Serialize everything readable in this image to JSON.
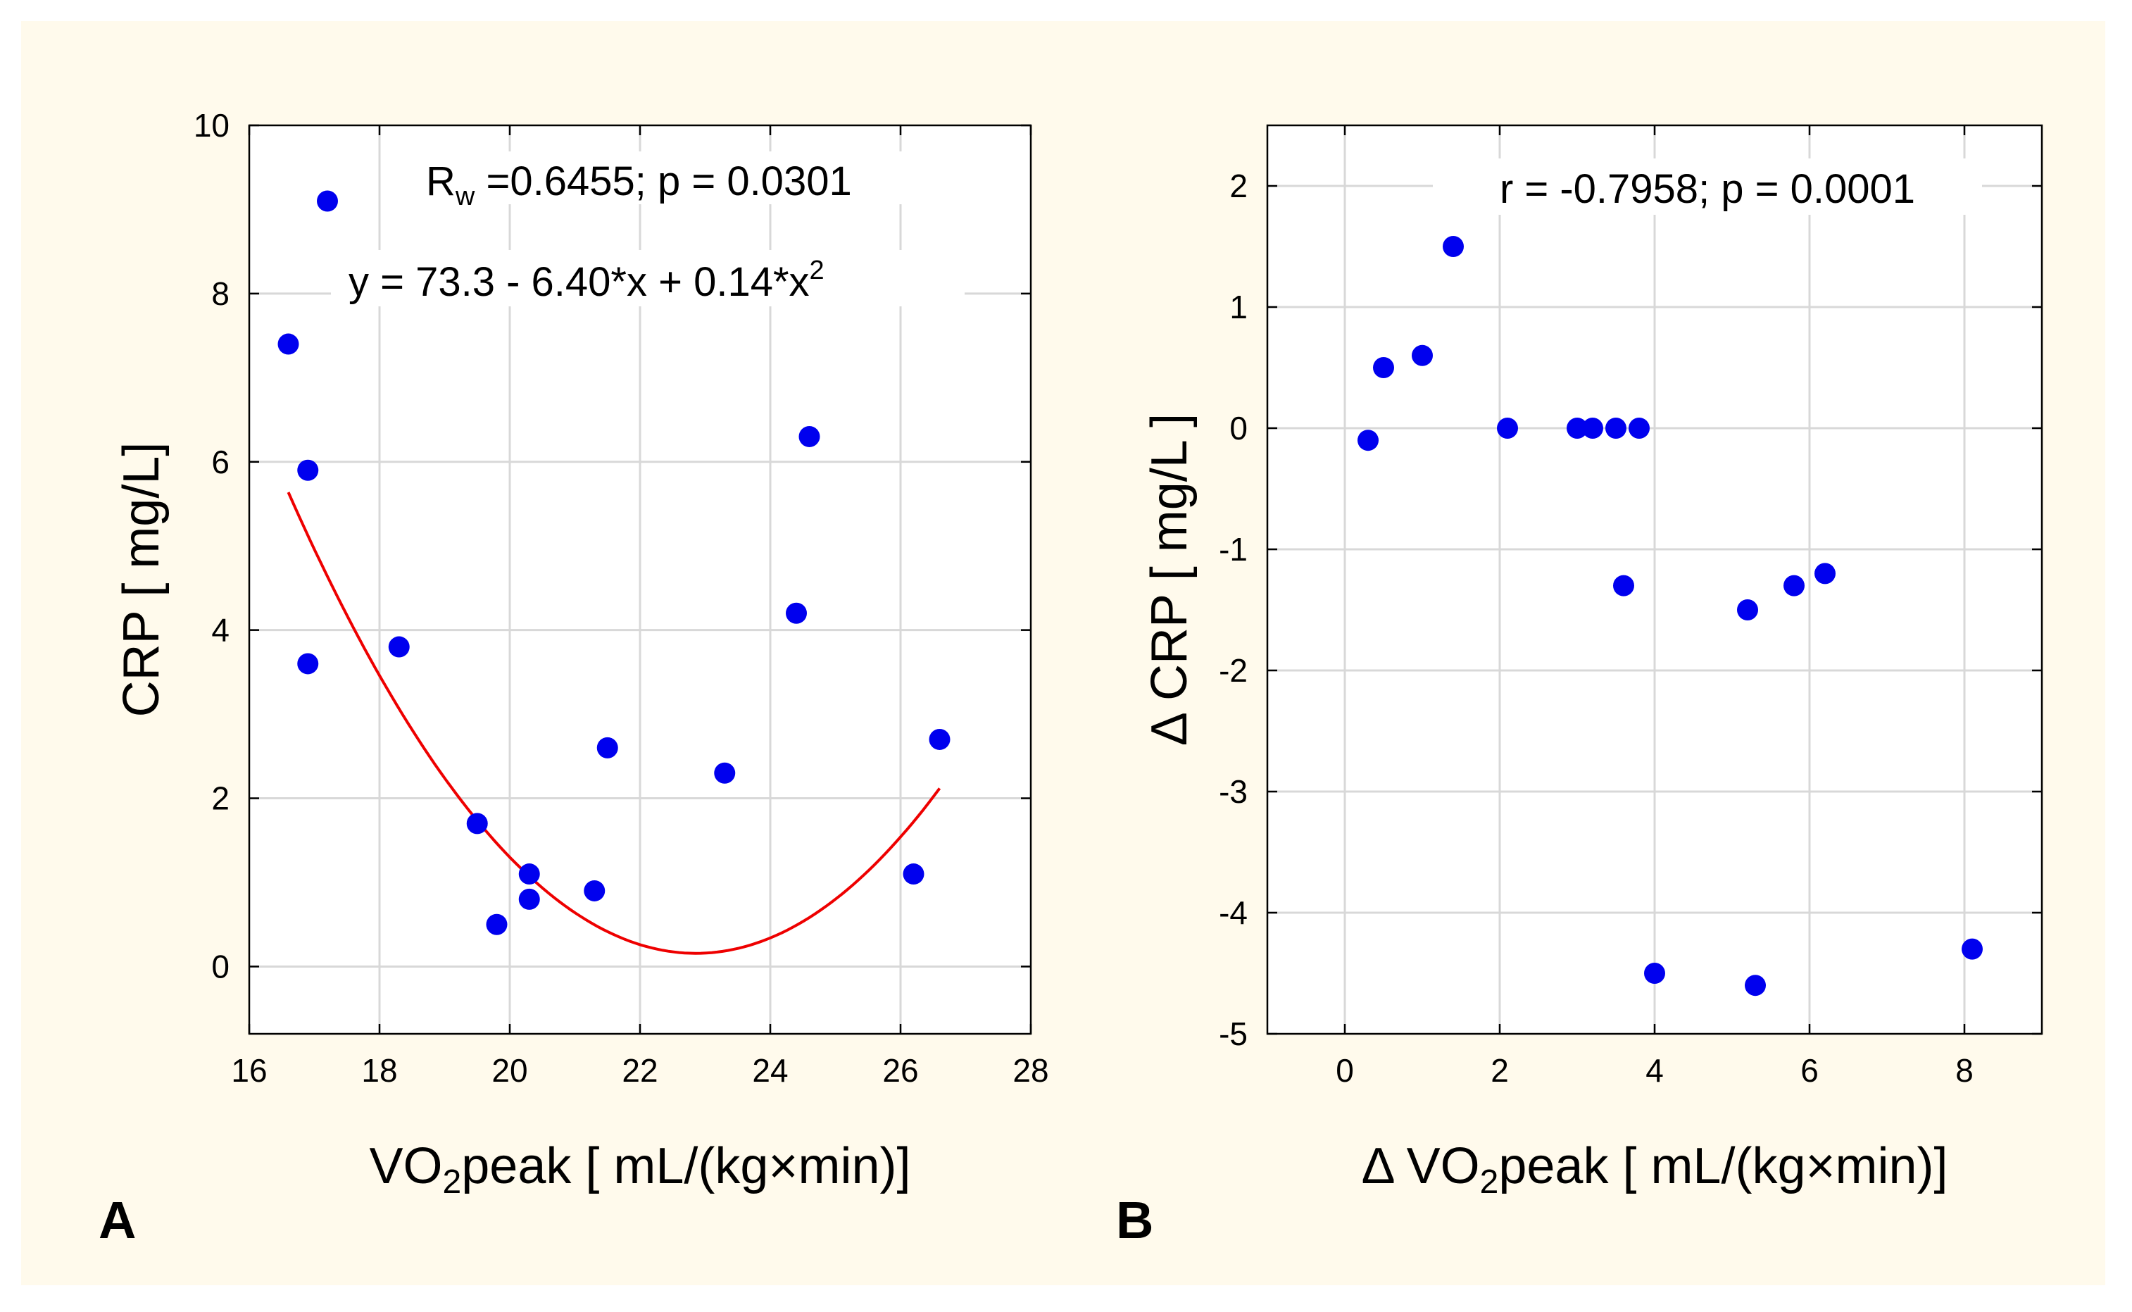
{
  "colors": {
    "background": "#fffaec",
    "plot_background": "#ffffff",
    "grid": "#d8d8d8",
    "point": "#0000ee",
    "fit_line": "#ee0000",
    "axis": "#000000"
  },
  "chart_data": [
    {
      "panel_label": "A",
      "type": "scatter",
      "xlabel_prefix": "VO",
      "xlabel_sub": "2",
      "xlabel_suffix": "peak [ mL/(kg×min)]",
      "ylabel": "CRP [ mg/L]",
      "xlim": [
        16,
        28
      ],
      "ylim": [
        -0.8,
        10
      ],
      "xticks": [
        16,
        18,
        20,
        22,
        24,
        26,
        28
      ],
      "yticks": [
        0,
        2,
        4,
        6,
        8,
        10
      ],
      "grid": true,
      "annotation_stat": {
        "prefix": "R",
        "sub": "w",
        "rest": " =0.6455; p = 0.0301"
      },
      "annotation_equation": {
        "text": "y = 73.3 - 6.40*x + 0.14*x",
        "sup": "2"
      },
      "fit": {
        "type": "quadratic",
        "a": 73.3,
        "b": -6.4,
        "c": 0.14,
        "x_range": [
          16.6,
          26.6
        ]
      },
      "points": [
        {
          "x": 17.2,
          "y": 9.1
        },
        {
          "x": 16.6,
          "y": 7.4
        },
        {
          "x": 16.9,
          "y": 5.9
        },
        {
          "x": 16.9,
          "y": 3.6
        },
        {
          "x": 18.3,
          "y": 3.8
        },
        {
          "x": 19.5,
          "y": 1.7
        },
        {
          "x": 19.8,
          "y": 0.5
        },
        {
          "x": 20.3,
          "y": 1.1
        },
        {
          "x": 20.3,
          "y": 0.8
        },
        {
          "x": 21.3,
          "y": 0.9
        },
        {
          "x": 21.5,
          "y": 2.6
        },
        {
          "x": 23.3,
          "y": 2.3
        },
        {
          "x": 24.4,
          "y": 4.2
        },
        {
          "x": 24.6,
          "y": 6.3
        },
        {
          "x": 26.2,
          "y": 1.1
        },
        {
          "x": 26.6,
          "y": 2.7
        }
      ]
    },
    {
      "panel_label": "B",
      "type": "scatter",
      "xlabel_prefix": "Δ VO",
      "xlabel_sub": "2",
      "xlabel_suffix": "peak [ mL/(kg×min)]",
      "ylabel": "Δ CRP [ mg/L ]",
      "xlim": [
        -1,
        9
      ],
      "ylim": [
        -5,
        2.5
      ],
      "xticks": [
        0,
        2,
        4,
        6,
        8
      ],
      "yticks": [
        2,
        1,
        0,
        -1,
        -2,
        -3,
        -4,
        -5
      ],
      "grid": true,
      "annotation_stat": {
        "text": "r = -0.7958; p = 0.0001"
      },
      "points": [
        {
          "x": 0.3,
          "y": -0.1
        },
        {
          "x": 0.5,
          "y": 0.5
        },
        {
          "x": 1.0,
          "y": 0.6
        },
        {
          "x": 1.4,
          "y": 1.5
        },
        {
          "x": 2.1,
          "y": 0.0
        },
        {
          "x": 3.0,
          "y": 0.0
        },
        {
          "x": 3.2,
          "y": 0.0
        },
        {
          "x": 3.5,
          "y": 0.0
        },
        {
          "x": 3.8,
          "y": 0.0
        },
        {
          "x": 3.6,
          "y": -1.3
        },
        {
          "x": 4.0,
          "y": -4.5
        },
        {
          "x": 5.2,
          "y": -1.5
        },
        {
          "x": 5.3,
          "y": -4.6
        },
        {
          "x": 5.8,
          "y": -1.3
        },
        {
          "x": 6.2,
          "y": -1.2
        },
        {
          "x": 8.1,
          "y": -4.3
        }
      ]
    }
  ]
}
